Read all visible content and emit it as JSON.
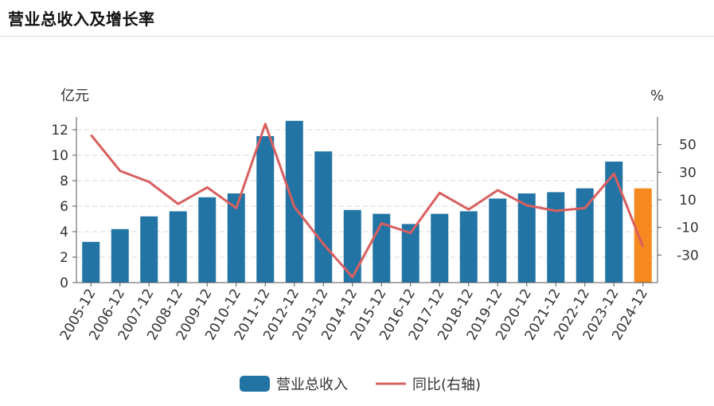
{
  "title": "营业总收入及增长率",
  "chart_data": {
    "type": "bar",
    "categories": [
      "2005-12",
      "2006-12",
      "2007-12",
      "2008-12",
      "2009-12",
      "2010-12",
      "2011-12",
      "2012-12",
      "2013-12",
      "2014-12",
      "2015-12",
      "2016-12",
      "2017-12",
      "2018-12",
      "2019-12",
      "2020-12",
      "2021-12",
      "2022-12",
      "2023-12",
      "2024-12"
    ],
    "series": [
      {
        "name": "营业总收入",
        "type": "bar",
        "axis": "left",
        "color": "#2274a5",
        "highlight_color": "#f5881f",
        "highlight_index": 19,
        "values": [
          3.2,
          4.2,
          5.2,
          5.6,
          6.7,
          7.0,
          11.5,
          12.7,
          10.3,
          5.7,
          5.4,
          4.6,
          5.4,
          5.6,
          6.6,
          7.0,
          7.1,
          7.4,
          9.5,
          7.4
        ]
      },
      {
        "name": "同比(右轴)",
        "type": "line",
        "axis": "right",
        "color": "#d95f5f",
        "values": [
          57,
          31,
          23,
          7,
          19,
          4,
          65,
          5,
          -22,
          -46,
          -7,
          -14,
          15,
          3,
          17,
          6,
          2,
          4,
          29,
          -24
        ]
      }
    ],
    "left_axis": {
      "unit": "亿元",
      "ticks": [
        0,
        2,
        4,
        6,
        8,
        10,
        12
      ],
      "ylim": [
        0,
        13
      ]
    },
    "right_axis": {
      "unit": "%",
      "ticks": [
        -30,
        -10,
        10,
        30,
        50
      ],
      "ylim": [
        -50,
        70
      ]
    },
    "grid": true,
    "legend": {
      "position": "bottom",
      "items": [
        "营业总收入",
        "同比(右轴)"
      ]
    }
  }
}
